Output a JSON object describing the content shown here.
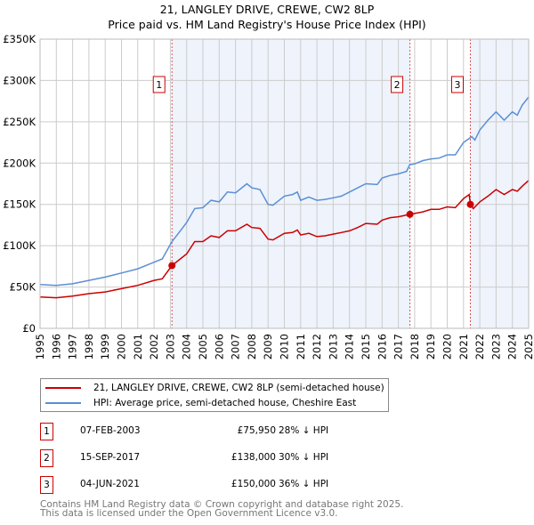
{
  "chart_data": {
    "type": "line",
    "title": "21, LANGLEY DRIVE, CREWE, CW2 8LP",
    "subtitle": "Price paid vs. HM Land Registry's House Price Index (HPI)",
    "xlim": [
      1995,
      2025
    ],
    "ylim": [
      0,
      350000
    ],
    "yticks": [
      0,
      50000,
      100000,
      150000,
      200000,
      250000,
      300000,
      350000
    ],
    "ytick_labels": [
      "£0",
      "£50K",
      "£100K",
      "£150K",
      "£200K",
      "£250K",
      "£300K",
      "£350K"
    ],
    "xticks": [
      1995,
      1996,
      1997,
      1998,
      1999,
      2000,
      2001,
      2002,
      2003,
      2004,
      2005,
      2006,
      2007,
      2008,
      2009,
      2010,
      2011,
      2012,
      2013,
      2014,
      2015,
      2016,
      2017,
      2018,
      2019,
      2020,
      2021,
      2022,
      2023,
      2024,
      2025
    ],
    "grid": true,
    "series": [
      {
        "name": "21, LANGLEY DRIVE, CREWE, CW2 8LP (semi-detached house)",
        "color": "#cc0000",
        "x": [
          1995,
          1996,
          1997,
          1998,
          1999,
          2000,
          2001,
          2002,
          2002.5,
          2003.1,
          2004,
          2004.5,
          2005,
          2005.5,
          2006,
          2006.5,
          2007,
          2007.7,
          2008,
          2008.5,
          2009,
          2009.3,
          2010,
          2010.5,
          2010.8,
          2011,
          2011.5,
          2012,
          2012.5,
          2013,
          2013.5,
          2014,
          2014.5,
          2015,
          2015.7,
          2016,
          2016.5,
          2017,
          2017.7,
          2018,
          2018.5,
          2019,
          2019.5,
          2020,
          2020.5,
          2021,
          2021.35,
          2021.42,
          2021.6,
          2022,
          2022.5,
          2023,
          2023.5,
          2024,
          2024.3,
          2024.6,
          2025
        ],
        "y": [
          38,
          37,
          39,
          42,
          44,
          48,
          52,
          58,
          60,
          76,
          90,
          105,
          105,
          112,
          110,
          118,
          118,
          126,
          122,
          121,
          108,
          107,
          115,
          116,
          119,
          113,
          115,
          111,
          112,
          114,
          116,
          118,
          122,
          127,
          126,
          131,
          134,
          135,
          138,
          139,
          141,
          144,
          144,
          147,
          146,
          157,
          162,
          150,
          145,
          153,
          160,
          168,
          162,
          168,
          166,
          172,
          179
        ]
      },
      {
        "name": "HPI: Average price, semi-detached house, Cheshire East",
        "color": "#5b8fd4",
        "x": [
          1995,
          1996,
          1997,
          1998,
          1999,
          2000,
          2001,
          2002,
          2002.5,
          2003.1,
          2003.5,
          2004,
          2004.5,
          2005,
          2005.5,
          2006,
          2006.5,
          2007,
          2007.7,
          2008,
          2008.5,
          2009,
          2009.3,
          2010,
          2010.5,
          2010.8,
          2011,
          2011.5,
          2012,
          2012.5,
          2013,
          2013.5,
          2014,
          2014.5,
          2015,
          2015.7,
          2016,
          2016.5,
          2017,
          2017.5,
          2017.7,
          2018,
          2018.5,
          2019,
          2019.5,
          2020,
          2020.5,
          2021,
          2021.5,
          2021.7,
          2022,
          2022.5,
          2023,
          2023.5,
          2024,
          2024.3,
          2024.6,
          2025
        ],
        "y": [
          53,
          52,
          54,
          58,
          62,
          67,
          72,
          80,
          84,
          105,
          115,
          128,
          145,
          146,
          155,
          153,
          165,
          164,
          175,
          170,
          168,
          150,
          149,
          160,
          162,
          165,
          155,
          159,
          155,
          156,
          158,
          160,
          165,
          170,
          175,
          174,
          182,
          185,
          187,
          190,
          198,
          199,
          203,
          205,
          206,
          210,
          210,
          225,
          232,
          228,
          240,
          252,
          262,
          252,
          262,
          258,
          270,
          280
        ]
      }
    ],
    "y_units": "thousands GBP",
    "sales": [
      {
        "id": "1",
        "x": 2003.1,
        "y": 75.95
      },
      {
        "id": "2",
        "x": 2017.71,
        "y": 138
      },
      {
        "id": "3",
        "x": 2021.42,
        "y": 150
      }
    ],
    "legend_position": "below"
  },
  "table": [
    {
      "id": "1",
      "date": "07-FEB-2003",
      "price": "£75,950",
      "hpi": "28% ↓ HPI"
    },
    {
      "id": "2",
      "date": "15-SEP-2017",
      "price": "£138,000",
      "hpi": "30% ↓ HPI"
    },
    {
      "id": "3",
      "date": "04-JUN-2021",
      "price": "£150,000",
      "hpi": "36% ↓ HPI"
    }
  ],
  "footer": {
    "line1": "Contains HM Land Registry data © Crown copyright and database right 2025.",
    "line2": "This data is licensed under the Open Government Licence v3.0."
  }
}
